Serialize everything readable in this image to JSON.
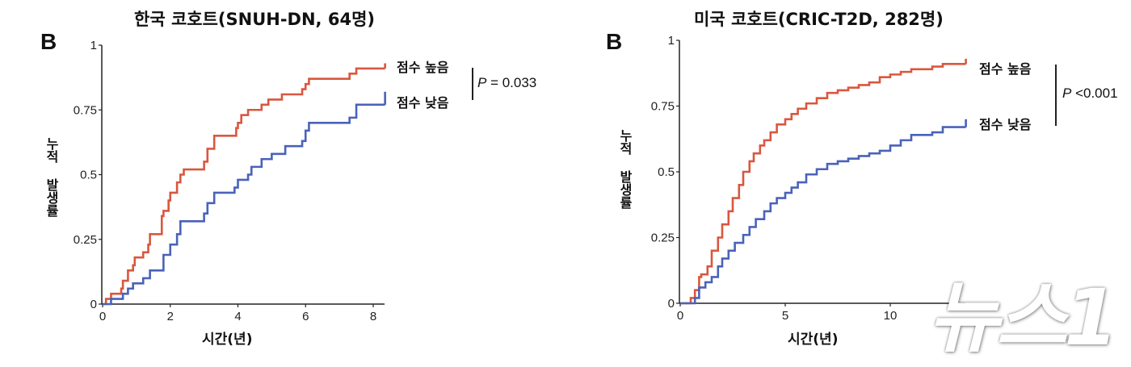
{
  "colors": {
    "high": "#D9573F",
    "low": "#4A62B8",
    "axis": "#222222"
  },
  "watermark": {
    "text": "뉴스1"
  },
  "chart_data": [
    {
      "type": "line",
      "subtype": "step (Kaplan-Meier cumulative incidence)",
      "panel_letter": "B",
      "title": "한국 코호트(SNUH-DN, 64명)",
      "xlabel": "시간(년)",
      "ylabel": "누적 발생률",
      "xticks": [
        0,
        2,
        4,
        6,
        8
      ],
      "yticks": [
        0,
        0.25,
        0.5,
        0.75,
        1
      ],
      "ytick_labels": [
        "0",
        "0.25",
        "0.5",
        "0.75",
        "1"
      ],
      "xlim": [
        0,
        8.35
      ],
      "ylim": [
        0,
        1
      ],
      "grid": false,
      "legend_position": "right",
      "p_value_label": "P",
      "p_value_text": " = 0.033",
      "series": [
        {
          "name": "점수 높음",
          "color": "#D9573F",
          "x": [
            0,
            0.1,
            0.25,
            0.55,
            0.6,
            0.75,
            0.9,
            0.95,
            1.2,
            1.35,
            1.4,
            1.75,
            1.8,
            1.95,
            2.0,
            2.2,
            2.3,
            2.4,
            3.0,
            3.1,
            3.3,
            3.95,
            4.0,
            4.1,
            4.3,
            4.7,
            4.9,
            5.3,
            5.9,
            6.0,
            6.1,
            7.3,
            7.5,
            8.35
          ],
          "y": [
            0,
            0.02,
            0.04,
            0.06,
            0.09,
            0.13,
            0.15,
            0.18,
            0.2,
            0.23,
            0.27,
            0.34,
            0.36,
            0.4,
            0.43,
            0.47,
            0.5,
            0.52,
            0.55,
            0.6,
            0.65,
            0.68,
            0.7,
            0.73,
            0.75,
            0.77,
            0.79,
            0.81,
            0.83,
            0.85,
            0.87,
            0.89,
            0.91,
            0.91
          ],
          "end_tick": 0.93
        },
        {
          "name": "점수 낮음",
          "color": "#4A62B8",
          "x": [
            0,
            0.25,
            0.6,
            0.75,
            0.9,
            1.2,
            1.4,
            1.8,
            2.0,
            2.2,
            2.3,
            3.0,
            3.1,
            3.3,
            3.9,
            4.0,
            4.3,
            4.4,
            4.7,
            5.0,
            5.4,
            5.9,
            6.0,
            6.1,
            7.3,
            7.5,
            8.35
          ],
          "y": [
            0,
            0.02,
            0.04,
            0.06,
            0.08,
            0.1,
            0.13,
            0.19,
            0.23,
            0.27,
            0.32,
            0.35,
            0.39,
            0.43,
            0.45,
            0.48,
            0.5,
            0.53,
            0.56,
            0.58,
            0.61,
            0.63,
            0.67,
            0.7,
            0.72,
            0.77,
            0.77
          ],
          "end_tick": 0.82
        }
      ]
    },
    {
      "type": "line",
      "subtype": "step (Kaplan-Meier cumulative incidence)",
      "panel_letter": "B",
      "title": "미국 코호트(CRIC-T2D, 282명)",
      "xlabel": "시간(년)",
      "ylabel": "누적 발생률",
      "xticks": [
        0,
        5,
        10
      ],
      "yticks": [
        0,
        0.25,
        0.5,
        0.75,
        1
      ],
      "ytick_labels": [
        "0",
        "0.25",
        "0.5",
        "0.75",
        "1"
      ],
      "xlim": [
        0,
        13.6
      ],
      "ylim": [
        0,
        1
      ],
      "grid": false,
      "legend_position": "right",
      "p_value_label": "P",
      "p_value_text": " <0.001",
      "series": [
        {
          "name": "점수 높음",
          "color": "#D9573F",
          "x": [
            0,
            0.5,
            0.7,
            0.9,
            1.0,
            1.3,
            1.5,
            1.8,
            2.0,
            2.3,
            2.5,
            2.8,
            3.0,
            3.3,
            3.5,
            3.8,
            4.0,
            4.3,
            4.6,
            5.0,
            5.3,
            5.6,
            6.0,
            6.5,
            7.0,
            7.5,
            8.0,
            8.5,
            9.0,
            9.5,
            10.0,
            10.5,
            11.0,
            12.0,
            12.5,
            13.6
          ],
          "y": [
            0,
            0.02,
            0.05,
            0.1,
            0.11,
            0.14,
            0.2,
            0.25,
            0.3,
            0.35,
            0.4,
            0.45,
            0.5,
            0.54,
            0.57,
            0.6,
            0.62,
            0.65,
            0.68,
            0.7,
            0.72,
            0.74,
            0.76,
            0.78,
            0.8,
            0.81,
            0.82,
            0.83,
            0.84,
            0.86,
            0.87,
            0.88,
            0.89,
            0.9,
            0.91,
            0.91
          ],
          "end_tick": 0.93
        },
        {
          "name": "점수 낮음",
          "color": "#4A62B8",
          "x": [
            0,
            0.7,
            0.9,
            1.2,
            1.5,
            1.8,
            2.0,
            2.3,
            2.6,
            3.0,
            3.3,
            3.6,
            4.0,
            4.3,
            4.6,
            5.0,
            5.3,
            5.6,
            6.0,
            6.5,
            7.0,
            7.5,
            8.0,
            8.5,
            9.0,
            9.5,
            10.0,
            10.5,
            11.0,
            12.0,
            12.5,
            13.6
          ],
          "y": [
            0,
            0.02,
            0.06,
            0.08,
            0.1,
            0.14,
            0.17,
            0.2,
            0.23,
            0.26,
            0.29,
            0.32,
            0.35,
            0.38,
            0.4,
            0.42,
            0.44,
            0.46,
            0.49,
            0.51,
            0.53,
            0.54,
            0.55,
            0.56,
            0.57,
            0.58,
            0.6,
            0.62,
            0.64,
            0.65,
            0.67,
            0.67
          ],
          "end_tick": 0.7
        }
      ]
    }
  ]
}
